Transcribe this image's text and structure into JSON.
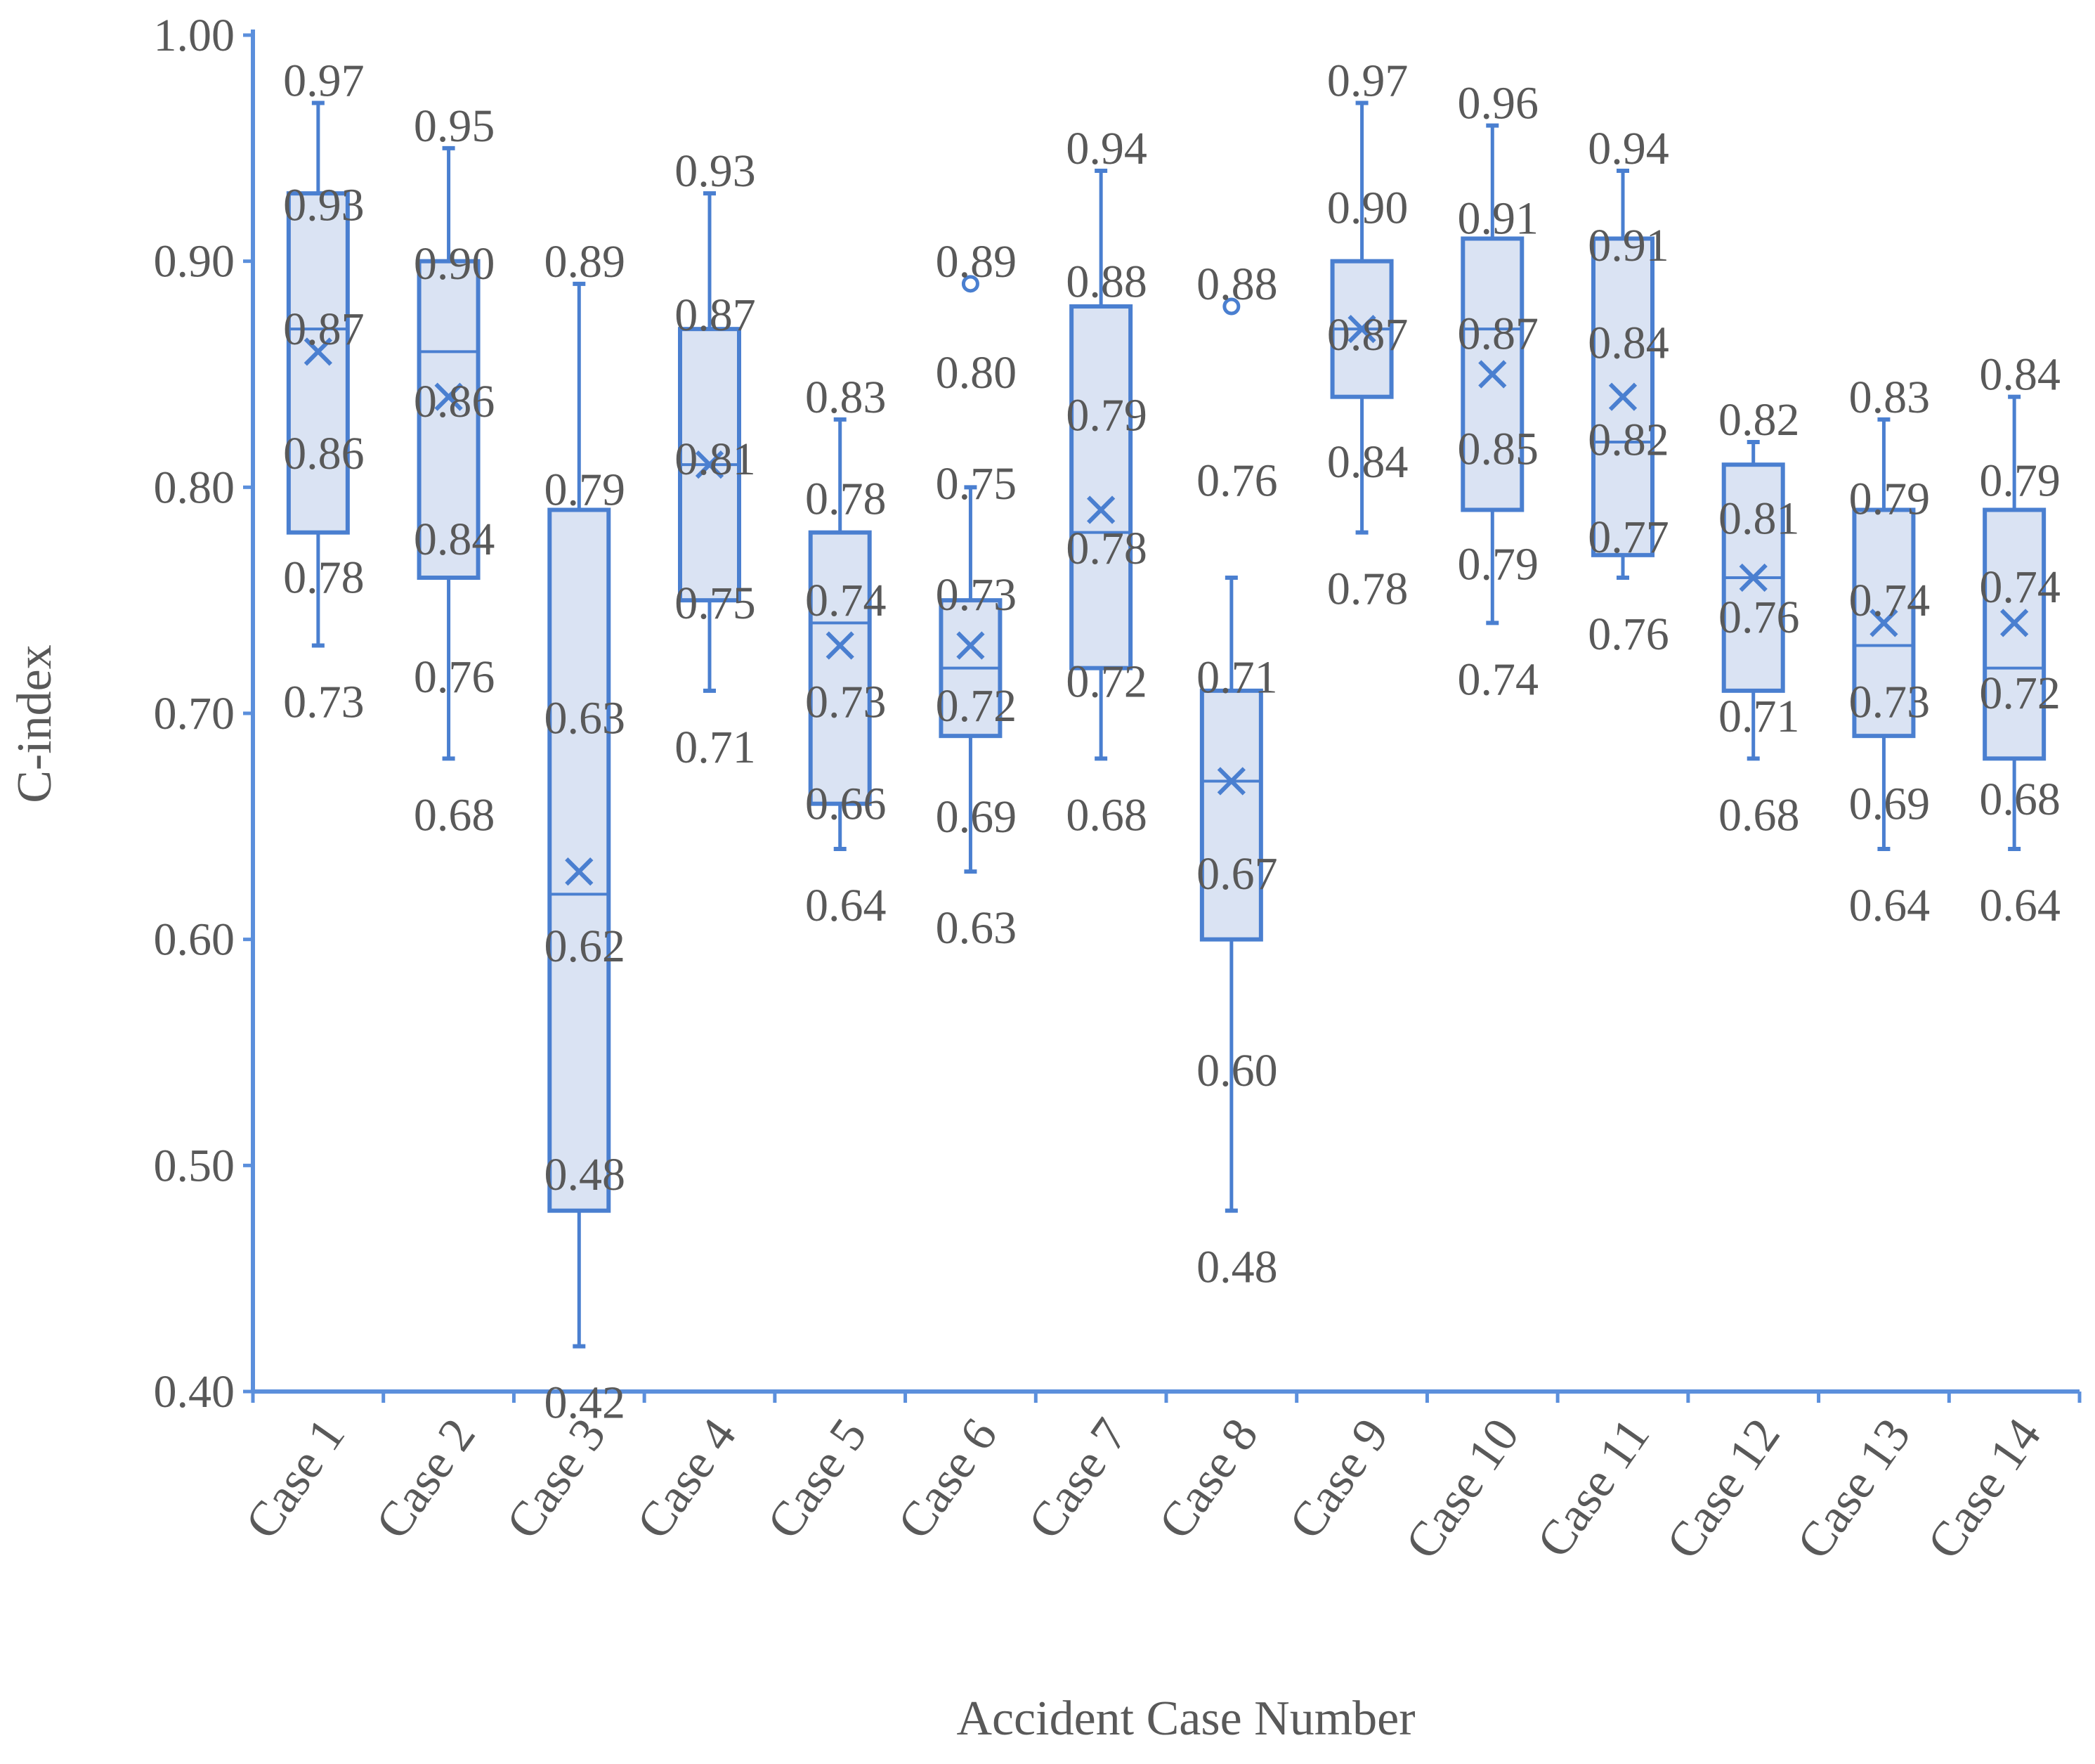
{
  "chart_data": {
    "type": "box",
    "title": "",
    "xlabel": "Accident Case Number",
    "ylabel": "C-index",
    "ylim": [
      0.4,
      1.0
    ],
    "yticks": [
      "1.00",
      "0.90",
      "0.80",
      "0.70",
      "0.60",
      "0.50",
      "0.40"
    ],
    "grid": false,
    "legend": "none",
    "colors": {
      "box_fill": "#dae3f3",
      "box_stroke": "#4a7fd0",
      "axis": "#5b8fdc",
      "text": "#595959"
    },
    "categories": [
      "Case 1",
      "Case 2",
      "Case 3",
      "Case 4",
      "Case 5",
      "Case 6",
      "Case 7",
      "Case 8",
      "Case 9",
      "Case 10",
      "Case 11",
      "Case 12",
      "Case 13",
      "Case 14"
    ],
    "boxes": [
      {
        "min": 0.73,
        "q1": 0.78,
        "median": 0.87,
        "mean": 0.86,
        "q3": 0.93,
        "max": 0.97,
        "outliers": [],
        "labels": [
          "0.97",
          "0.93",
          "0.87",
          "0.86",
          "0.78",
          "0.73"
        ]
      },
      {
        "min": 0.68,
        "q1": 0.76,
        "median": 0.86,
        "mean": 0.84,
        "q3": 0.9,
        "max": 0.95,
        "outliers": [],
        "labels": [
          "0.95",
          "0.90",
          "0.86",
          "0.84",
          "0.76",
          "0.68"
        ]
      },
      {
        "min": 0.42,
        "q1": 0.48,
        "median": 0.62,
        "mean": 0.63,
        "q3": 0.79,
        "max": 0.89,
        "outliers": [],
        "labels": [
          "0.89",
          "0.79",
          "0.63",
          "0.62",
          "0.48",
          "0.42"
        ]
      },
      {
        "min": 0.71,
        "q1": 0.75,
        "median": 0.81,
        "mean": 0.81,
        "q3": 0.87,
        "max": 0.93,
        "outliers": [],
        "labels": [
          "0.93",
          "0.87",
          "0.81",
          "0.75",
          "0.71"
        ]
      },
      {
        "min": 0.64,
        "q1": 0.66,
        "median": 0.74,
        "mean": 0.73,
        "q3": 0.78,
        "max": 0.83,
        "outliers": [],
        "labels": [
          "0.83",
          "0.78",
          "0.74",
          "0.73",
          "0.66",
          "0.64"
        ]
      },
      {
        "min": 0.63,
        "q1": 0.69,
        "median": 0.72,
        "mean": 0.73,
        "q3": 0.75,
        "max": 0.8,
        "outliers": [
          0.89
        ],
        "labels": [
          "0.89",
          "0.80",
          "0.75",
          "0.73",
          "0.72",
          "0.69",
          "0.63"
        ]
      },
      {
        "min": 0.68,
        "q1": 0.72,
        "median": 0.78,
        "mean": 0.79,
        "q3": 0.88,
        "max": 0.94,
        "outliers": [],
        "labels": [
          "0.94",
          "0.88",
          "0.79",
          "0.78",
          "0.72",
          "0.68"
        ]
      },
      {
        "min": 0.48,
        "q1": 0.6,
        "median": 0.67,
        "mean": 0.67,
        "q3": 0.71,
        "max": 0.76,
        "outliers": [
          0.88
        ],
        "labels": [
          "0.88",
          "0.76",
          "0.71",
          "0.67",
          "0.60",
          "0.48"
        ]
      },
      {
        "min": 0.78,
        "q1": 0.84,
        "median": 0.87,
        "mean": 0.87,
        "q3": 0.9,
        "max": 0.97,
        "outliers": [],
        "labels": [
          "0.97",
          "0.90",
          "0.87",
          "0.84",
          "0.78"
        ]
      },
      {
        "min": 0.74,
        "q1": 0.79,
        "median": 0.87,
        "mean": 0.85,
        "q3": 0.91,
        "max": 0.96,
        "outliers": [],
        "labels": [
          "0.96",
          "0.91",
          "0.87",
          "0.85",
          "0.79",
          "0.74"
        ]
      },
      {
        "min": 0.76,
        "q1": 0.77,
        "median": 0.82,
        "mean": 0.84,
        "q3": 0.91,
        "max": 0.94,
        "outliers": [],
        "labels": [
          "0.94",
          "0.91",
          "0.84",
          "0.82",
          "0.77",
          "0.76"
        ]
      },
      {
        "min": 0.68,
        "q1": 0.71,
        "median": 0.76,
        "mean": 0.76,
        "q3": 0.81,
        "max": 0.82,
        "outliers": [],
        "labels": [
          "0.82",
          "0.81",
          "0.76",
          "0.71",
          "0.68"
        ]
      },
      {
        "min": 0.64,
        "q1": 0.69,
        "median": 0.73,
        "mean": 0.74,
        "q3": 0.79,
        "max": 0.83,
        "outliers": [],
        "labels": [
          "0.83",
          "0.79",
          "0.74",
          "0.73",
          "0.69",
          "0.64"
        ]
      },
      {
        "min": 0.64,
        "q1": 0.68,
        "median": 0.72,
        "mean": 0.74,
        "q3": 0.79,
        "max": 0.84,
        "outliers": [],
        "labels": [
          "0.84",
          "0.79",
          "0.74",
          "0.72",
          "0.68",
          "0.64"
        ]
      }
    ]
  }
}
